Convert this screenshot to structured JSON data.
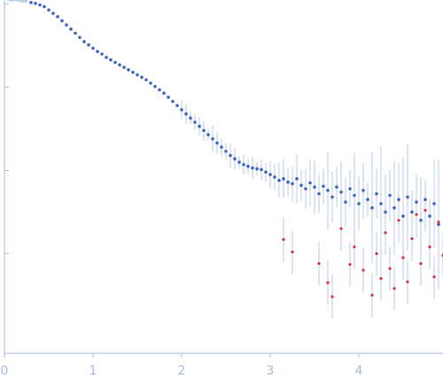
{
  "chart_data": {
    "type": "scatter",
    "title": "",
    "xlabel": "",
    "ylabel": "",
    "xlim": [
      0,
      4.95
    ],
    "y_scale": "log",
    "ylim_log10": [
      -4.7,
      -0.45
    ],
    "x_ticks": [
      {
        "value": 0,
        "label": "0"
      },
      {
        "value": 1,
        "label": "1"
      },
      {
        "value": 2,
        "label": "2"
      },
      {
        "value": 3,
        "label": "3"
      },
      {
        "value": 4,
        "label": "4"
      }
    ],
    "y_ticks_log10": [
      -0.5,
      -1.5,
      -2.5,
      -3.5
    ],
    "grid": false,
    "legend": "none",
    "colors": {
      "axis": "#aab8d9",
      "tick_label": "#aab8d9",
      "points": "#3a66c0",
      "error_bars": "#b8c9e8",
      "excluded_points": "#b9cce8",
      "negative_points": "#e02840"
    },
    "series": [
      {
        "role": "excluded-low-q",
        "points": [
          [
            0.05,
            -0.44
          ],
          [
            0.08,
            -0.45
          ],
          [
            0.12,
            -0.44
          ],
          [
            0.16,
            -0.45
          ],
          [
            0.2,
            -0.46
          ],
          [
            0.24,
            -0.46
          ]
        ]
      },
      {
        "role": "measured",
        "points": [
          [
            0.3,
            -0.48
          ],
          [
            0.35,
            -0.49
          ],
          [
            0.4,
            -0.51
          ],
          [
            0.45,
            -0.53
          ],
          [
            0.5,
            -0.57
          ],
          [
            0.55,
            -0.61
          ],
          [
            0.6,
            -0.65
          ],
          [
            0.65,
            -0.7
          ],
          [
            0.7,
            -0.75
          ],
          [
            0.75,
            -0.8
          ],
          [
            0.8,
            -0.85
          ],
          [
            0.85,
            -0.9
          ],
          [
            0.9,
            -0.95
          ],
          [
            0.95,
            -0.99
          ],
          [
            1.0,
            -1.03
          ],
          [
            1.05,
            -1.07
          ],
          [
            1.1,
            -1.1
          ],
          [
            1.15,
            -1.14
          ],
          [
            1.2,
            -1.17
          ],
          [
            1.25,
            -1.2
          ],
          [
            1.3,
            -1.23
          ],
          [
            1.35,
            -1.26
          ],
          [
            1.4,
            -1.29
          ],
          [
            1.45,
            -1.32
          ],
          [
            1.5,
            -1.35
          ],
          [
            1.55,
            -1.38
          ],
          [
            1.6,
            -1.41
          ],
          [
            1.65,
            -1.45
          ],
          [
            1.7,
            -1.49
          ],
          [
            1.75,
            -1.53
          ],
          [
            1.8,
            -1.57
          ],
          [
            1.85,
            -1.62
          ],
          [
            1.9,
            -1.67
          ],
          [
            1.95,
            -1.72
          ],
          [
            2.0,
            -1.77
          ],
          [
            2.05,
            -1.82
          ],
          [
            2.1,
            -1.87
          ],
          [
            2.15,
            -1.92
          ],
          [
            2.2,
            -1.97
          ],
          [
            2.25,
            -2.02
          ],
          [
            2.3,
            -2.07
          ],
          [
            2.35,
            -2.12
          ],
          [
            2.4,
            -2.17
          ],
          [
            2.45,
            -2.22
          ],
          [
            2.5,
            -2.27
          ],
          [
            2.55,
            -2.32
          ],
          [
            2.6,
            -2.36
          ],
          [
            2.65,
            -2.4
          ],
          [
            2.7,
            -2.43
          ],
          [
            2.75,
            -2.45
          ],
          [
            2.8,
            -2.47
          ],
          [
            2.85,
            -2.48
          ],
          [
            2.9,
            -2.49
          ],
          [
            2.95,
            -2.52
          ],
          [
            3.0,
            -2.55
          ],
          [
            3.05,
            -2.58
          ],
          [
            3.1,
            -2.62
          ],
          [
            3.15,
            -2.6
          ],
          [
            3.2,
            -2.64
          ],
          [
            3.25,
            -2.66
          ],
          [
            3.3,
            -2.6
          ],
          [
            3.35,
            -2.68
          ],
          [
            3.4,
            -2.72
          ],
          [
            3.45,
            -2.65
          ],
          [
            3.5,
            -2.7
          ],
          [
            3.55,
            -2.78
          ],
          [
            3.6,
            -2.69
          ],
          [
            3.65,
            -2.74
          ],
          [
            3.7,
            -2.82
          ],
          [
            3.75,
            -2.7
          ],
          [
            3.8,
            -2.76
          ],
          [
            3.85,
            -2.88
          ],
          [
            3.9,
            -2.72
          ],
          [
            3.95,
            -2.8
          ],
          [
            4.0,
            -2.9
          ],
          [
            4.05,
            -2.74
          ],
          [
            4.1,
            -2.85
          ],
          [
            4.15,
            -2.95
          ],
          [
            4.2,
            -2.78
          ],
          [
            4.25,
            -2.9
          ],
          [
            4.3,
            -3.0
          ],
          [
            4.35,
            -2.8
          ],
          [
            4.4,
            -2.95
          ],
          [
            4.45,
            -2.85
          ],
          [
            4.5,
            -3.05
          ],
          [
            4.55,
            -2.82
          ],
          [
            4.6,
            -3.0
          ],
          [
            4.65,
            -2.88
          ],
          [
            4.7,
            -3.1
          ],
          [
            4.75,
            -2.85
          ],
          [
            4.8,
            -3.05
          ],
          [
            4.85,
            -2.9
          ],
          [
            4.9,
            -3.15
          ]
        ]
      },
      {
        "role": "negative-intensity",
        "points": [
          [
            3.15,
            -3.33
          ],
          [
            3.25,
            -3.48
          ],
          [
            3.55,
            -3.62
          ],
          [
            3.65,
            -3.85
          ],
          [
            3.7,
            -4.02
          ],
          [
            3.8,
            -3.2
          ],
          [
            3.9,
            -3.63
          ],
          [
            3.95,
            -3.42
          ],
          [
            4.05,
            -3.7
          ],
          [
            4.15,
            -4.0
          ],
          [
            4.2,
            -3.5
          ],
          [
            4.25,
            -3.8
          ],
          [
            4.3,
            -3.25
          ],
          [
            4.35,
            -3.68
          ],
          [
            4.4,
            -3.92
          ],
          [
            4.45,
            -3.1
          ],
          [
            4.5,
            -3.55
          ],
          [
            4.55,
            -3.84
          ],
          [
            4.6,
            -3.32
          ],
          [
            4.65,
            -3.03
          ],
          [
            4.7,
            -3.62
          ],
          [
            4.75,
            -2.98
          ],
          [
            4.8,
            -3.42
          ],
          [
            4.85,
            -3.78
          ],
          [
            4.9,
            -3.12
          ],
          [
            4.95,
            -3.52
          ]
        ]
      }
    ]
  }
}
